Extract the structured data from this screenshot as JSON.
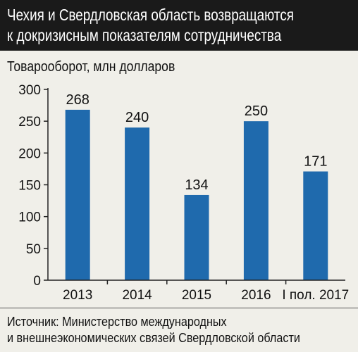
{
  "header": {
    "title_line1": "Чехия и Свердловская область возвращаются",
    "title_line2": "к докризисным показателям сотрудничества"
  },
  "footer": {
    "source_line1": "Источник: Министерство международных",
    "source_line2": "и внешнеэкономических связей Свердловской области"
  },
  "colors": {
    "bar": "#1f6aad",
    "background": "#f0efe9",
    "header_bg": "#1a1a1a"
  },
  "chart_data": {
    "type": "bar",
    "ylabel": "Товарооборот, млн долларов",
    "categories": [
      "2013",
      "2014",
      "2015",
      "2016",
      "I пол. 2017"
    ],
    "values": [
      268,
      240,
      134,
      250,
      171
    ],
    "value_labels": [
      "268",
      "240",
      "134",
      "250",
      "171"
    ],
    "ylim": [
      0,
      300
    ],
    "yticks": [
      0,
      50,
      100,
      150,
      200,
      250,
      300
    ],
    "grid": false,
    "legend": "none"
  }
}
